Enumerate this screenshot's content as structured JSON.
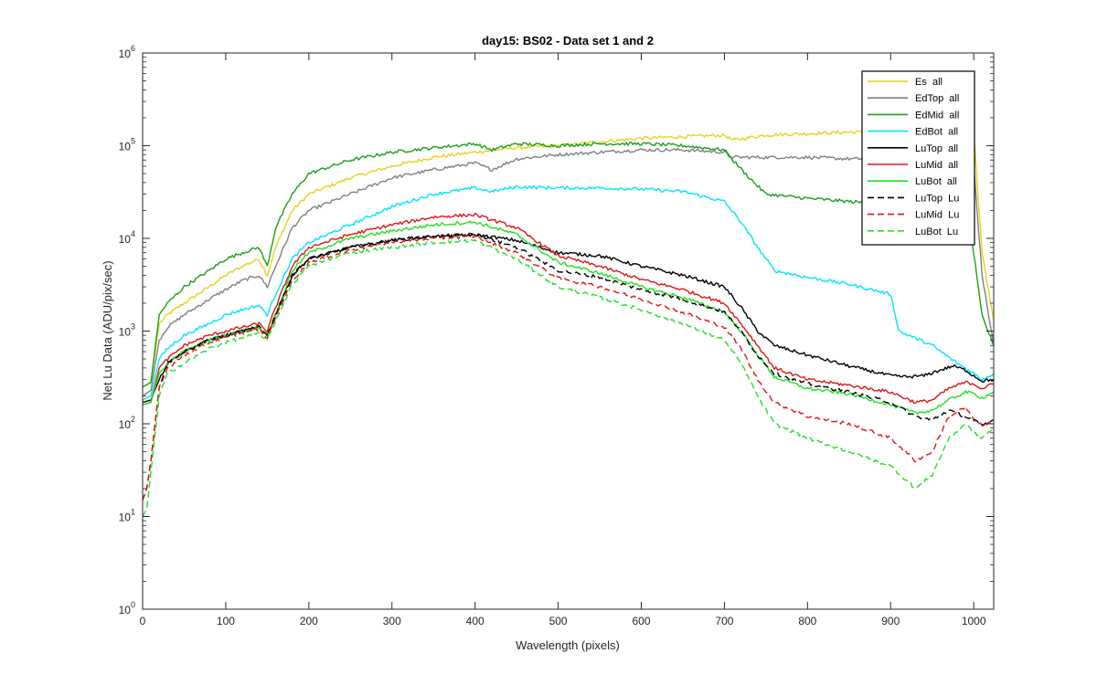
{
  "chart_data": {
    "type": "line",
    "title": "day15: BS02 - Data set 1 and 2",
    "xlabel": "Wavelength (pixels)",
    "ylabel": "Net Lu Data (ADU/pix/sec)",
    "xlim": [
      0,
      1024
    ],
    "ylim": [
      1,
      1000000
    ],
    "yscale": "log",
    "grid": false,
    "legend_position": "top-right",
    "x_ticks": [
      "0",
      "100",
      "200",
      "300",
      "400",
      "500",
      "600",
      "700",
      "800",
      "900",
      "1000"
    ],
    "x_tick_values": [
      0,
      100,
      200,
      300,
      400,
      500,
      600,
      700,
      800,
      900,
      1000
    ],
    "y_ticks": [
      {
        "base": "10",
        "exp": "0",
        "value": 1
      },
      {
        "base": "10",
        "exp": "1",
        "value": 10
      },
      {
        "base": "10",
        "exp": "2",
        "value": 100
      },
      {
        "base": "10",
        "exp": "3",
        "value": 1000
      },
      {
        "base": "10",
        "exp": "4",
        "value": 10000
      },
      {
        "base": "10",
        "exp": "5",
        "value": 100000
      },
      {
        "base": "10",
        "exp": "6",
        "value": 1000000
      }
    ],
    "series": [
      {
        "name": "Es  all",
        "color": "#e6d21e",
        "dash": "solid",
        "x": [
          0,
          10,
          20,
          30,
          50,
          80,
          100,
          120,
          140,
          150,
          160,
          180,
          200,
          250,
          300,
          350,
          400,
          450,
          500,
          550,
          600,
          650,
          700,
          710,
          750,
          800,
          850,
          900,
          950,
          1000,
          1010,
          1024
        ],
        "y": [
          250,
          280,
          1200,
          1500,
          2000,
          3000,
          4000,
          5000,
          6000,
          4000,
          8000,
          20000,
          30000,
          45000,
          60000,
          75000,
          85000,
          95000,
          100000,
          110000,
          120000,
          125000,
          130000,
          115000,
          130000,
          135000,
          140000,
          140000,
          140000,
          140000,
          7000,
          1300
        ]
      },
      {
        "name": "EdTop  all",
        "color": "#808080",
        "dash": "solid",
        "x": [
          0,
          10,
          20,
          30,
          50,
          80,
          100,
          120,
          140,
          150,
          160,
          180,
          200,
          250,
          300,
          350,
          400,
          420,
          450,
          500,
          550,
          600,
          650,
          700,
          710,
          750,
          800,
          850,
          900,
          950,
          1000,
          1010,
          1024
        ],
        "y": [
          200,
          230,
          800,
          1100,
          1500,
          2200,
          2800,
          3500,
          4000,
          3000,
          5000,
          13000,
          20000,
          30000,
          45000,
          55000,
          65000,
          55000,
          72000,
          80000,
          85000,
          90000,
          90000,
          85000,
          75000,
          75000,
          75000,
          72000,
          72000,
          72000,
          60000,
          4000,
          700
        ]
      },
      {
        "name": "EdMid  all",
        "color": "#1aa01a",
        "dash": "solid",
        "x": [
          0,
          10,
          20,
          30,
          50,
          80,
          100,
          120,
          140,
          150,
          160,
          180,
          200,
          250,
          300,
          350,
          400,
          420,
          450,
          500,
          550,
          600,
          650,
          700,
          710,
          730,
          750,
          800,
          850,
          900,
          950,
          990,
          1000,
          1010,
          1024
        ],
        "y": [
          250,
          280,
          1500,
          2000,
          3000,
          4500,
          6000,
          7000,
          8000,
          5000,
          13000,
          30000,
          50000,
          70000,
          85000,
          95000,
          105000,
          90000,
          105000,
          100000,
          105000,
          105000,
          100000,
          90000,
          70000,
          45000,
          30000,
          27000,
          25000,
          23000,
          22000,
          20000,
          7000,
          1500,
          700
        ]
      },
      {
        "name": "EdBot  all",
        "color": "#00e5ff",
        "dash": "solid",
        "x": [
          0,
          10,
          20,
          30,
          50,
          80,
          100,
          120,
          140,
          150,
          160,
          180,
          200,
          250,
          300,
          350,
          400,
          420,
          450,
          500,
          550,
          600,
          650,
          700,
          720,
          740,
          760,
          800,
          850,
          900,
          910,
          950,
          980,
          1000,
          1010,
          1024
        ],
        "y": [
          180,
          200,
          500,
          650,
          900,
          1200,
          1500,
          1700,
          1900,
          1500,
          2500,
          6000,
          9000,
          14000,
          22000,
          30000,
          35000,
          32000,
          36000,
          35000,
          35000,
          34000,
          32000,
          25000,
          15000,
          8000,
          4500,
          3800,
          3200,
          2500,
          1000,
          700,
          450,
          350,
          300,
          350
        ]
      },
      {
        "name": "LuTop  all",
        "color": "#000000",
        "dash": "solid",
        "x": [
          0,
          10,
          20,
          30,
          50,
          80,
          100,
          120,
          140,
          150,
          160,
          180,
          200,
          250,
          300,
          350,
          400,
          450,
          500,
          550,
          600,
          650,
          700,
          720,
          740,
          760,
          800,
          850,
          900,
          920,
          940,
          960,
          975,
          990,
          1000,
          1010,
          1024
        ],
        "y": [
          170,
          180,
          300,
          450,
          600,
          800,
          900,
          1000,
          1100,
          900,
          1500,
          4000,
          6000,
          8000,
          9500,
          10500,
          11000,
          9500,
          7000,
          6500,
          5000,
          4000,
          3000,
          1800,
          1000,
          700,
          550,
          420,
          330,
          320,
          330,
          380,
          420,
          380,
          330,
          290,
          300
        ]
      },
      {
        "name": "LuMid  all",
        "color": "#e01515",
        "dash": "solid",
        "x": [
          0,
          10,
          20,
          30,
          50,
          80,
          100,
          120,
          140,
          150,
          160,
          180,
          200,
          250,
          300,
          350,
          400,
          450,
          500,
          550,
          600,
          650,
          700,
          720,
          740,
          760,
          800,
          850,
          900,
          930,
          950,
          970,
          990,
          1000,
          1010,
          1024
        ],
        "y": [
          160,
          170,
          400,
          500,
          700,
          900,
          1000,
          1100,
          1200,
          1000,
          1800,
          5000,
          8000,
          11000,
          14000,
          17000,
          18000,
          13000,
          6500,
          5000,
          3600,
          2800,
          2000,
          1200,
          700,
          400,
          300,
          260,
          220,
          170,
          180,
          240,
          280,
          270,
          240,
          270
        ]
      },
      {
        "name": "LuBot  all",
        "color": "#22e022",
        "dash": "solid",
        "x": [
          0,
          10,
          20,
          30,
          50,
          80,
          100,
          120,
          140,
          150,
          160,
          180,
          200,
          250,
          300,
          350,
          400,
          450,
          500,
          550,
          600,
          650,
          700,
          720,
          740,
          760,
          800,
          850,
          900,
          930,
          950,
          970,
          990,
          1000,
          1010,
          1024
        ],
        "y": [
          160,
          170,
          350,
          450,
          600,
          800,
          900,
          1000,
          1100,
          900,
          1500,
          4500,
          7000,
          10000,
          12000,
          14000,
          15000,
          11000,
          5500,
          4200,
          3000,
          2300,
          1600,
          1000,
          550,
          320,
          240,
          210,
          160,
          130,
          140,
          180,
          220,
          210,
          190,
          220
        ]
      },
      {
        "name": "LuTop  Lu",
        "color": "#000000",
        "dash": "dashed",
        "x": [
          0,
          5,
          10,
          20,
          30,
          50,
          80,
          100,
          120,
          140,
          150,
          160,
          180,
          200,
          250,
          300,
          350,
          400,
          450,
          500,
          550,
          600,
          650,
          700,
          720,
          740,
          760,
          800,
          850,
          900,
          930,
          950,
          970,
          990,
          1000,
          1010,
          1024
        ],
        "y": [
          15,
          20,
          40,
          250,
          450,
          600,
          800,
          900,
          1000,
          1100,
          900,
          1500,
          4000,
          6000,
          8000,
          9500,
          10500,
          11000,
          8000,
          4500,
          3800,
          2800,
          2200,
          1600,
          1000,
          550,
          350,
          270,
          220,
          170,
          120,
          110,
          140,
          120,
          110,
          95,
          110
        ]
      },
      {
        "name": "LuMid  Lu",
        "color": "#e01515",
        "dash": "dashed",
        "x": [
          0,
          5,
          10,
          20,
          30,
          50,
          80,
          100,
          120,
          140,
          150,
          160,
          180,
          200,
          250,
          300,
          350,
          400,
          450,
          500,
          550,
          600,
          650,
          700,
          720,
          740,
          760,
          800,
          850,
          900,
          930,
          950,
          970,
          990,
          1000,
          1010,
          1024
        ],
        "y": [
          15,
          20,
          40,
          250,
          400,
          550,
          750,
          850,
          950,
          1050,
          850,
          1400,
          3500,
          5500,
          7500,
          9000,
          10000,
          10500,
          7000,
          3700,
          3000,
          2200,
          1600,
          1100,
          650,
          300,
          170,
          120,
          100,
          70,
          40,
          50,
          120,
          150,
          110,
          95,
          105
        ]
      },
      {
        "name": "LuBot  Lu",
        "color": "#22e022",
        "dash": "dashed",
        "x": [
          0,
          5,
          10,
          20,
          30,
          50,
          80,
          100,
          120,
          140,
          150,
          160,
          180,
          200,
          250,
          300,
          350,
          400,
          450,
          500,
          550,
          600,
          650,
          700,
          720,
          740,
          760,
          800,
          850,
          900,
          930,
          950,
          970,
          990,
          1000,
          1010,
          1024
        ],
        "y": [
          10,
          12,
          30,
          200,
          350,
          450,
          650,
          750,
          850,
          950,
          800,
          1300,
          3200,
          5000,
          7000,
          8000,
          9000,
          9500,
          6000,
          3000,
          2300,
          1700,
          1200,
          800,
          450,
          200,
          100,
          70,
          50,
          35,
          20,
          28,
          70,
          100,
          80,
          70,
          90
        ]
      }
    ]
  }
}
